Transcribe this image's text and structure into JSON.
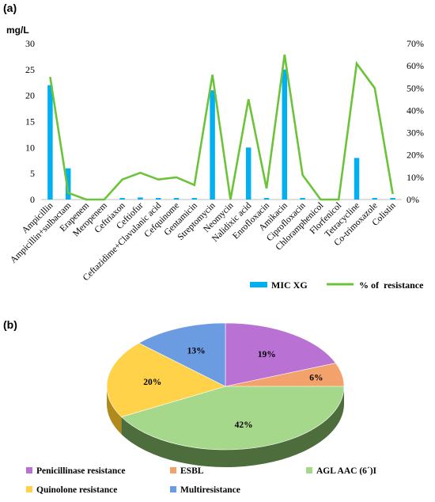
{
  "figure": {
    "panel_a_label": "(a)",
    "panel_b_label": "(b)"
  },
  "chart_data": [
    {
      "type": "bar",
      "panel": "(a)",
      "title": "",
      "ylabel": "mg/L",
      "y2label": "",
      "ylim": [
        0,
        30
      ],
      "yticks": [
        "0",
        "5",
        "10",
        "15",
        "20",
        "25",
        "30"
      ],
      "y2lim": [
        0,
        70
      ],
      "y2ticks": [
        "0%",
        "10%",
        "20%",
        "30%",
        "40%",
        "50%",
        "60%",
        "70%"
      ],
      "categories": [
        "Ampicillin",
        "Ampicillin+sulbactam",
        "Erapenem",
        "Meropenem",
        "Ceftriaxon",
        "Ceftiofur",
        "Ceftazidime+Clavulanic acid",
        "Cefquinome",
        "Gentamicin",
        "Streptomycin",
        "Neomycin",
        "Nalidixic acid",
        "Enrofloxacin",
        "Amikacin",
        "Ciprofloxacin",
        "Chloramphenicol",
        "Florfenicol",
        "Tetracycline",
        "Co-trimoxazole",
        "Colistin"
      ],
      "series": [
        {
          "name": "MIC XG",
          "kind": "bar",
          "axis": "left",
          "color": "#00b0f0",
          "values": [
            22,
            6,
            0,
            0,
            0.3,
            0.4,
            0.3,
            0.3,
            0.3,
            21,
            0,
            10,
            0.3,
            25,
            0.3,
            0,
            0,
            8,
            0.3,
            0.3
          ]
        },
        {
          "name": "% of  resistance",
          "kind": "line",
          "axis": "right",
          "color": "#6bc33a",
          "values": [
            55,
            3,
            0,
            0,
            9,
            12,
            9,
            10,
            6.5,
            56,
            0,
            45,
            5,
            65,
            11,
            0,
            0,
            61,
            50,
            2.5
          ]
        }
      ],
      "grid": false,
      "legend_position": "bottom-right"
    },
    {
      "type": "pie",
      "panel": "(b)",
      "title": "",
      "style": "3d",
      "slices": [
        {
          "label": "Penicillinase resistance",
          "value": 19,
          "text": "19%",
          "color": "#b971d4",
          "side": "#7a3f94"
        },
        {
          "label": "ESBL",
          "value": 6,
          "text": "6%",
          "color": "#f4a26b",
          "side": "#b86f3e"
        },
        {
          "label": "AGL AAC (6´)I",
          "value": 42,
          "text": "42%",
          "color": "#a6d88c",
          "side": "#4e6d3c"
        },
        {
          "label": "Quinolone resistance",
          "value": 20,
          "text": "20%",
          "color": "#ffd24a",
          "side": "#b08a1c"
        },
        {
          "label": "Multiresistance",
          "value": 13,
          "text": "13%",
          "color": "#6b9be0",
          "side": "#3a5f99"
        }
      ],
      "legend_position": "bottom"
    }
  ]
}
